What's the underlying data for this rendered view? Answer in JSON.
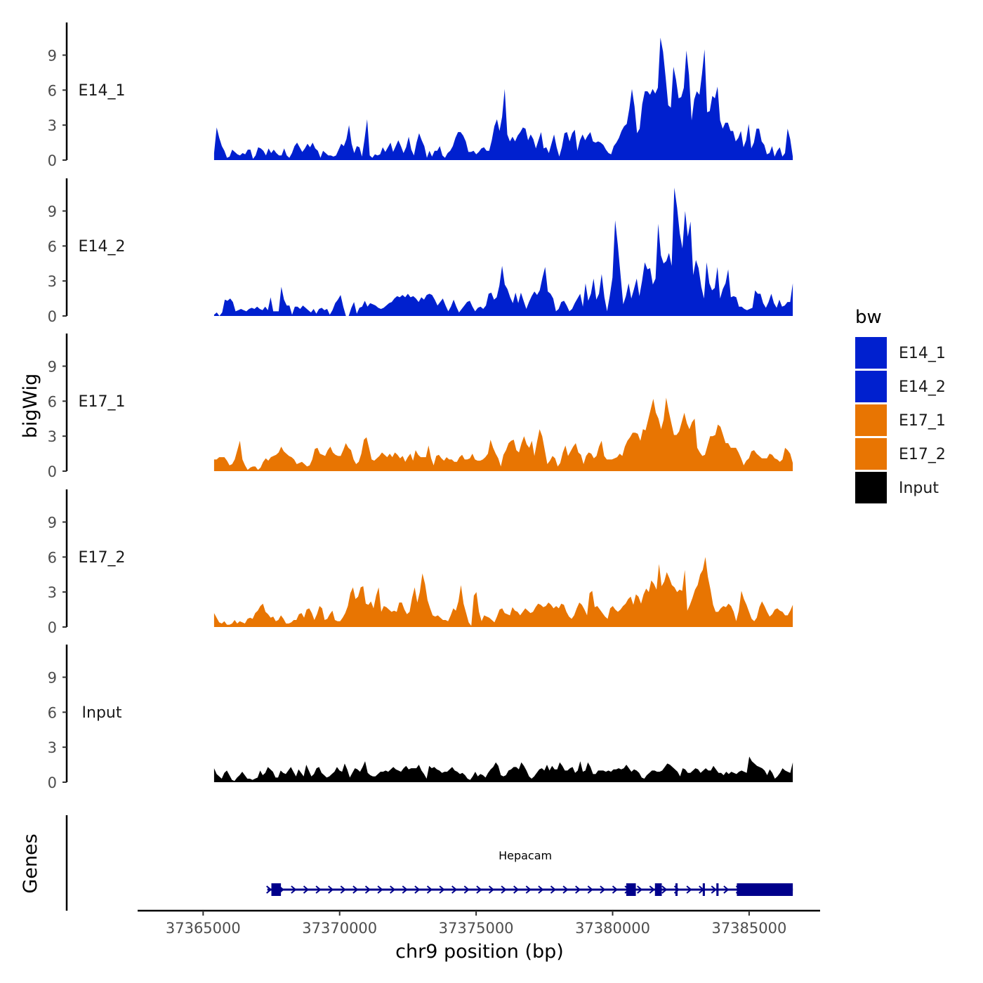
{
  "chart_data": {
    "type": "area",
    "title": "",
    "xlabel": "chr9 position (bp)",
    "ylabel": "bigWig",
    "genes_panel_label": "Genes",
    "xlim": [
      37362600,
      37387600
    ],
    "x_start": 37365400,
    "x_end": 37386600,
    "x_ticks": [
      37365000,
      37370000,
      37375000,
      37380000,
      37385000
    ],
    "x_tick_labels": [
      "37365000",
      "37370000",
      "37375000",
      "37380000",
      "37385000"
    ],
    "ylim": [
      0,
      11.8
    ],
    "y_ticks": [
      0,
      3,
      6,
      9
    ],
    "y_tick_labels": [
      "0",
      "3",
      "6",
      "9"
    ],
    "legend": {
      "title": "bw",
      "position": "right",
      "entries": [
        {
          "label": "E14_1",
          "color": "#0020CF"
        },
        {
          "label": "E14_2",
          "color": "#0020CF"
        },
        {
          "label": "E17_1",
          "color": "#E87502"
        },
        {
          "label": "E17_2",
          "color": "#E87502"
        },
        {
          "label": "Input",
          "color": "#000000"
        }
      ]
    },
    "series": [
      {
        "name": "E14_1",
        "color": "#0020CF",
        "values": [
          0.6,
          2.8,
          1.9,
          1.2,
          0.8,
          0.2,
          0.3,
          0.9,
          0.7,
          0.5,
          0.4,
          0.6,
          0.5,
          0.9,
          0.9,
          0.1,
          0.4,
          1.1,
          1.0,
          0.8,
          0.4,
          1.0,
          0.6,
          0.9,
          0.6,
          0.4,
          0.4,
          1.0,
          0.4,
          0.2,
          0.6,
          1.2,
          1.5,
          1.1,
          0.7,
          1.0,
          1.4,
          1.1,
          1.5,
          1.0,
          0.8,
          0.2,
          0.8,
          0.6,
          0.4,
          0.4,
          0.3,
          0.4,
          0.9,
          1.4,
          1.2,
          1.8,
          3.0,
          1.4,
          0.6,
          1.2,
          1.1,
          0.3,
          1.8,
          3.5,
          0.4,
          0.2,
          0.5,
          0.4,
          0.5,
          1.1,
          0.7,
          1.1,
          1.5,
          0.7,
          1.2,
          1.7,
          1.2,
          0.6,
          1.1,
          2.0,
          0.9,
          0.4,
          1.5,
          2.3,
          1.7,
          1.2,
          0.2,
          0.8,
          0.3,
          0.8,
          0.8,
          1.2,
          0.4,
          0.2,
          0.6,
          0.8,
          1.2,
          1.9,
          2.4,
          2.4,
          2.1,
          1.6,
          0.7,
          0.7,
          0.8,
          0.5,
          0.7,
          1.0,
          1.1,
          0.8,
          0.8,
          1.7,
          2.9,
          3.5,
          2.5,
          3.7,
          6.1,
          2.2,
          1.6,
          2.0,
          1.6,
          2.1,
          2.4,
          2.8,
          2.7,
          1.7,
          2.2,
          1.8,
          1.0,
          1.7,
          2.4,
          1.0,
          1.1,
          0.6,
          1.4,
          2.2,
          1.1,
          0.3,
          1.1,
          2.3,
          2.4,
          1.6,
          2.3,
          2.6,
          0.8,
          1.7,
          2.2,
          1.7,
          2.1,
          2.4,
          1.6,
          1.5,
          1.6,
          1.5,
          1.3,
          0.9,
          0.6,
          0.5,
          1.2,
          1.5,
          1.9,
          2.5,
          2.9,
          3.1,
          4.4,
          6.1,
          4.6,
          2.3,
          2.7,
          4.8,
          5.9,
          5.9,
          5.6,
          6.1,
          5.7,
          6.2,
          10.5,
          9.3,
          7.1,
          4.7,
          4.5,
          8.0,
          6.9,
          5.3,
          5.4,
          6.2,
          9.4,
          7.3,
          3.4,
          5.2,
          5.9,
          5.6,
          7.4,
          9.5,
          4.1,
          4.2,
          5.5,
          5.3,
          6.3,
          3.4,
          2.7,
          3.2,
          3.2,
          2.5,
          2.5,
          1.6,
          1.9,
          2.5,
          1.1,
          1.7,
          3.1,
          1.0,
          1.5,
          2.7,
          2.7,
          1.6,
          1.3,
          0.5,
          0.6,
          1.2,
          0.3,
          0.8,
          1.1,
          0.3,
          0.6,
          2.7,
          1.8,
          0.3
        ]
      },
      {
        "name": "E14_2",
        "color": "#0020CF",
        "values": [
          0.1,
          0.3,
          0.0,
          0.3,
          1.4,
          1.3,
          1.5,
          1.2,
          0.4,
          0.5,
          0.6,
          0.5,
          0.4,
          0.6,
          0.7,
          0.6,
          0.8,
          0.6,
          0.5,
          0.8,
          0.5,
          1.6,
          0.4,
          0.4,
          0.4,
          2.5,
          1.4,
          0.9,
          0.9,
          0.1,
          0.8,
          0.8,
          0.6,
          0.9,
          0.7,
          0.5,
          0.3,
          0.6,
          0.2,
          0.6,
          0.7,
          0.5,
          0.6,
          0.1,
          0.5,
          1.1,
          1.4,
          1.8,
          0.8,
          0.0,
          0.0,
          0.7,
          1.2,
          0.2,
          0.7,
          0.8,
          1.3,
          0.8,
          1.1,
          1.0,
          0.9,
          0.7,
          0.6,
          0.7,
          0.9,
          1.1,
          1.2,
          1.5,
          1.7,
          1.6,
          1.8,
          1.6,
          1.9,
          1.6,
          1.7,
          1.5,
          1.2,
          1.6,
          1.4,
          1.8,
          1.9,
          1.8,
          1.4,
          0.9,
          1.2,
          1.5,
          0.9,
          0.4,
          0.8,
          1.4,
          0.8,
          0.3,
          0.6,
          0.9,
          1.2,
          1.3,
          0.8,
          0.4,
          0.7,
          0.8,
          0.6,
          0.9,
          1.9,
          2.0,
          1.4,
          1.6,
          2.6,
          4.3,
          2.7,
          2.3,
          1.6,
          1.1,
          2.0,
          1.1,
          2.0,
          1.3,
          0.6,
          1.2,
          1.7,
          2.1,
          1.8,
          2.2,
          3.3,
          4.2,
          2.1,
          1.9,
          1.5,
          0.4,
          0.6,
          1.2,
          1.3,
          0.9,
          0.4,
          0.6,
          1.1,
          1.5,
          1.9,
          0.8,
          2.8,
          1.3,
          1.9,
          3.2,
          1.4,
          1.9,
          3.6,
          1.6,
          0.4,
          1.7,
          3.3,
          8.2,
          6.1,
          3.5,
          1.0,
          1.7,
          2.8,
          1.5,
          2.3,
          3.2,
          1.7,
          3.0,
          4.6,
          4.0,
          4.1,
          2.7,
          3.2,
          7.9,
          5.2,
          4.5,
          4.7,
          5.4,
          4.3,
          11.0,
          9.3,
          7.1,
          5.8,
          9.0,
          6.8,
          8.1,
          3.5,
          4.8,
          4.1,
          2.5,
          1.5,
          4.6,
          2.8,
          2.2,
          2.4,
          4.2,
          1.5,
          2.3,
          2.8,
          4.0,
          1.6,
          1.7,
          1.6,
          0.8,
          0.8,
          0.6,
          0.5,
          0.6,
          0.7,
          2.2,
          1.9,
          1.9,
          1.1,
          0.7,
          1.2,
          1.9,
          1.1,
          0.7,
          1.4,
          0.8,
          0.9,
          1.2,
          1.2,
          2.8
        ]
      },
      {
        "name": "E17_1",
        "color": "#E87502",
        "values": [
          1.0,
          1.0,
          1.2,
          1.2,
          1.2,
          0.9,
          0.5,
          0.6,
          1.0,
          1.8,
          2.6,
          1.0,
          0.5,
          0.1,
          0.3,
          0.4,
          0.4,
          0.1,
          0.3,
          0.8,
          1.1,
          0.9,
          1.2,
          1.3,
          1.4,
          1.6,
          2.1,
          1.7,
          1.5,
          1.3,
          1.2,
          1.0,
          0.6,
          0.7,
          0.8,
          0.6,
          0.4,
          0.5,
          1.0,
          1.9,
          2.0,
          1.5,
          1.4,
          1.3,
          1.8,
          2.1,
          1.6,
          1.4,
          1.3,
          1.3,
          1.8,
          2.4,
          2.0,
          1.8,
          1.0,
          0.6,
          0.8,
          1.5,
          2.7,
          2.9,
          2.0,
          1.0,
          0.9,
          1.1,
          1.3,
          1.6,
          1.4,
          1.2,
          1.5,
          1.2,
          1.6,
          1.4,
          1.1,
          1.3,
          0.8,
          1.2,
          1.5,
          0.9,
          1.8,
          1.4,
          1.2,
          1.2,
          1.2,
          2.2,
          1.1,
          0.5,
          1.3,
          1.4,
          1.1,
          0.9,
          1.2,
          1.0,
          1.0,
          0.8,
          0.8,
          1.2,
          1.4,
          1.0,
          1.0,
          1.1,
          1.5,
          1.0,
          0.9,
          0.9,
          1.0,
          1.2,
          1.5,
          2.7,
          2.0,
          1.5,
          1.1,
          0.4,
          1.4,
          1.8,
          2.4,
          2.6,
          2.7,
          1.8,
          1.6,
          2.4,
          3.0,
          2.3,
          2.0,
          2.6,
          1.3,
          2.5,
          3.6,
          3.0,
          1.8,
          0.6,
          0.9,
          1.3,
          1.1,
          0.4,
          0.7,
          1.6,
          2.2,
          1.3,
          1.7,
          2.1,
          2.4,
          1.6,
          1.4,
          0.6,
          1.3,
          1.6,
          1.5,
          1.1,
          1.3,
          2.1,
          2.6,
          1.3,
          1.0,
          1.0,
          1.0,
          1.1,
          1.2,
          1.5,
          1.3,
          2.1,
          2.6,
          2.9,
          3.3,
          3.3,
          3.2,
          2.6,
          3.6,
          3.5,
          4.4,
          5.3,
          6.2,
          5.0,
          4.5,
          3.6,
          4.4,
          6.3,
          5.1,
          4.1,
          3.1,
          3.1,
          3.4,
          4.2,
          5.0,
          4.1,
          3.6,
          4.2,
          4.5,
          2.0,
          1.6,
          1.3,
          1.4,
          2.2,
          3.0,
          3.0,
          3.1,
          4.0,
          3.8,
          3.1,
          2.4,
          2.4,
          2.0,
          2.0,
          2.0,
          1.6,
          1.1,
          0.5,
          0.9,
          1.1,
          1.7,
          1.8,
          1.5,
          1.3,
          1.1,
          1.1,
          1.1,
          1.5,
          1.4,
          1.1,
          1.0,
          0.8,
          1.0,
          2.0,
          1.8,
          1.5,
          0.7
        ]
      },
      {
        "name": "E17_2",
        "color": "#E87502",
        "values": [
          1.2,
          0.8,
          0.4,
          0.3,
          0.5,
          0.2,
          0.2,
          0.3,
          0.6,
          0.3,
          0.5,
          0.4,
          0.3,
          0.7,
          0.8,
          0.7,
          1.2,
          1.4,
          1.8,
          2.0,
          1.3,
          1.1,
          0.8,
          0.9,
          0.5,
          0.6,
          1.0,
          0.7,
          0.3,
          0.3,
          0.4,
          0.6,
          0.6,
          1.1,
          1.2,
          0.8,
          1.5,
          1.6,
          1.2,
          0.6,
          1.1,
          1.8,
          1.6,
          0.6,
          0.7,
          1.1,
          1.4,
          0.6,
          0.5,
          0.5,
          0.8,
          1.2,
          1.8,
          2.9,
          3.4,
          2.4,
          2.6,
          3.4,
          3.5,
          2.0,
          1.9,
          2.2,
          1.6,
          2.7,
          3.4,
          1.3,
          1.8,
          1.7,
          1.5,
          1.3,
          1.4,
          1.3,
          2.1,
          2.1,
          1.5,
          1.1,
          1.3,
          2.5,
          3.4,
          2.1,
          3.0,
          4.6,
          3.7,
          2.3,
          1.6,
          1.0,
          0.9,
          1.0,
          0.8,
          0.6,
          0.6,
          0.5,
          1.0,
          1.6,
          1.4,
          2.2,
          3.6,
          2.0,
          1.2,
          0.4,
          0.1,
          2.7,
          3.0,
          1.3,
          0.5,
          1.0,
          0.9,
          0.8,
          0.6,
          0.4,
          0.9,
          1.5,
          1.6,
          1.2,
          1.1,
          1.0,
          1.7,
          1.4,
          1.3,
          1.0,
          1.3,
          1.6,
          1.4,
          1.2,
          1.3,
          1.7,
          2.0,
          1.9,
          1.7,
          1.8,
          2.1,
          1.9,
          1.6,
          1.8,
          1.6,
          2.0,
          1.9,
          1.3,
          0.9,
          0.7,
          1.0,
          1.6,
          2.1,
          1.9,
          1.5,
          1.0,
          2.9,
          3.1,
          1.7,
          1.8,
          1.5,
          1.2,
          0.9,
          0.7,
          1.6,
          1.8,
          1.5,
          1.3,
          1.5,
          1.8,
          2.0,
          2.4,
          2.6,
          1.9,
          2.8,
          2.6,
          2.0,
          2.8,
          3.3,
          3.0,
          4.0,
          3.7,
          3.2,
          5.4,
          3.5,
          3.9,
          4.7,
          4.2,
          3.6,
          3.4,
          3.0,
          3.2,
          3.1,
          4.9,
          1.4,
          1.9,
          2.5,
          3.2,
          3.6,
          4.5,
          4.9,
          6.0,
          4.3,
          3.2,
          1.9,
          1.3,
          1.3,
          1.6,
          1.8,
          1.7,
          2.0,
          1.8,
          1.3,
          0.5,
          1.4,
          3.1,
          2.4,
          1.9,
          1.3,
          0.7,
          0.5,
          0.8,
          1.7,
          2.2,
          1.8,
          1.3,
          0.9,
          1.1,
          1.5,
          1.6,
          1.4,
          1.3,
          1.0,
          1.0,
          1.4,
          1.9
        ]
      },
      {
        "name": "Input",
        "color": "#000000",
        "values": [
          1.2,
          0.7,
          0.5,
          0.3,
          0.8,
          1.0,
          0.6,
          0.2,
          0.1,
          0.4,
          0.6,
          0.9,
          0.6,
          0.3,
          0.3,
          0.2,
          0.3,
          0.4,
          1.0,
          0.6,
          0.8,
          1.3,
          1.1,
          0.9,
          0.4,
          0.4,
          1.0,
          0.8,
          0.7,
          1.0,
          1.3,
          0.9,
          0.5,
          1.1,
          0.8,
          0.5,
          1.5,
          1.0,
          0.5,
          0.7,
          1.2,
          1.3,
          0.8,
          0.6,
          0.4,
          0.5,
          0.7,
          0.9,
          1.3,
          1.0,
          0.9,
          1.6,
          1.1,
          0.4,
          0.8,
          1.2,
          1.1,
          0.9,
          1.3,
          1.8,
          0.8,
          0.6,
          0.5,
          0.5,
          0.7,
          0.9,
          0.9,
          1.0,
          0.9,
          1.1,
          1.3,
          1.1,
          1.0,
          0.9,
          1.2,
          1.4,
          1.1,
          1.2,
          1.2,
          1.2,
          1.5,
          1.0,
          0.7,
          0.3,
          1.4,
          1.2,
          1.3,
          1.1,
          1.0,
          0.8,
          0.9,
          0.9,
          1.1,
          1.3,
          1.0,
          0.9,
          0.7,
          0.8,
          0.6,
          0.3,
          0.2,
          0.5,
          0.9,
          0.5,
          0.7,
          0.6,
          0.4,
          0.8,
          1.1,
          1.3,
          1.7,
          1.4,
          0.6,
          0.5,
          0.6,
          1.0,
          1.1,
          1.3,
          1.3,
          1.1,
          1.7,
          1.4,
          1.0,
          0.5,
          0.3,
          0.5,
          0.8,
          1.1,
          1.2,
          1.0,
          1.5,
          1.0,
          1.4,
          1.1,
          1.1,
          1.7,
          1.4,
          1.0,
          1.0,
          1.2,
          1.3,
          0.8,
          1.0,
          1.8,
          0.9,
          1.0,
          1.7,
          1.3,
          0.7,
          0.7,
          1.0,
          1.0,
          1.0,
          0.9,
          1.0,
          0.9,
          1.1,
          1.1,
          1.2,
          1.1,
          1.2,
          1.5,
          1.2,
          0.9,
          1.1,
          1.0,
          0.8,
          0.4,
          0.3,
          0.6,
          0.8,
          1.0,
          1.0,
          0.9,
          0.9,
          1.0,
          1.3,
          1.6,
          1.5,
          1.3,
          1.1,
          0.9,
          0.5,
          1.2,
          1.1,
          0.8,
          0.8,
          1.0,
          1.2,
          1.1,
          0.8,
          1.0,
          1.2,
          1.0,
          1.0,
          1.4,
          1.1,
          0.8,
          0.8,
          0.6,
          0.9,
          0.7,
          0.9,
          0.8,
          0.7,
          0.9,
          1.0,
          0.9,
          0.8,
          2.2,
          1.8,
          1.6,
          1.4,
          1.3,
          1.2,
          1.0,
          0.6,
          1.1,
          0.8,
          0.3,
          0.5,
          0.8,
          1.2,
          1.0,
          0.9,
          0.8,
          1.7
        ]
      }
    ],
    "genes": [
      {
        "name": "Hepacam",
        "strand": "+",
        "start": 37367350,
        "end": 37386600,
        "label_x": 37376800,
        "exons": [
          [
            37367500,
            37367850
          ],
          [
            37380500,
            37380850
          ],
          [
            37381550,
            37381800
          ],
          [
            37382300,
            37382380
          ],
          [
            37383300,
            37383380
          ],
          [
            37383800,
            37383880
          ],
          [
            37384550,
            37386600
          ]
        ]
      }
    ]
  }
}
